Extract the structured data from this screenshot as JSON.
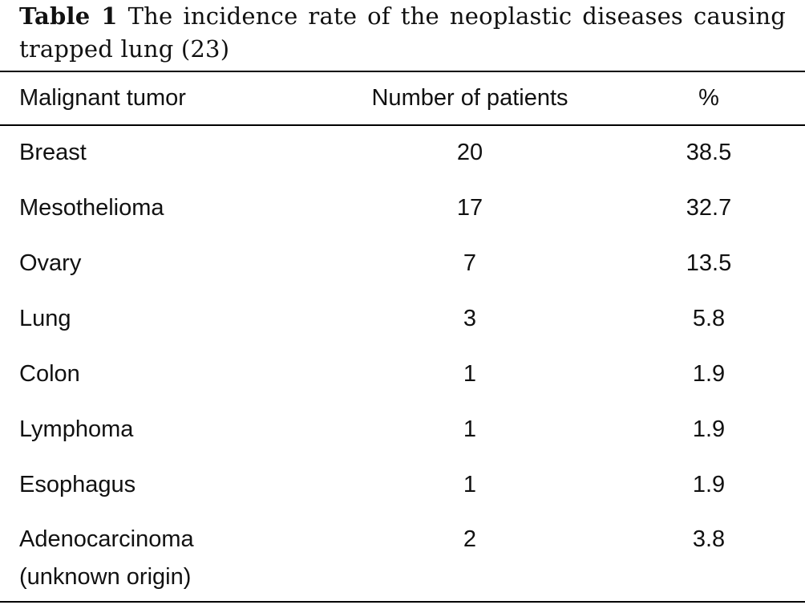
{
  "caption": {
    "label": "Table 1",
    "text": "The incidence rate of the neoplastic diseases causing trapped lung (23)"
  },
  "table": {
    "headers": [
      "Malignant tumor",
      "Number of patients",
      "%"
    ],
    "rows": [
      {
        "tumor": "Breast",
        "patients": "20",
        "percent": "38.5"
      },
      {
        "tumor": "Mesothelioma",
        "patients": "17",
        "percent": "32.7"
      },
      {
        "tumor": "Ovary",
        "patients": "7",
        "percent": "13.5"
      },
      {
        "tumor": "Lung",
        "patients": "3",
        "percent": "5.8"
      },
      {
        "tumor": "Colon",
        "patients": "1",
        "percent": "1.9"
      },
      {
        "tumor": "Lymphoma",
        "patients": "1",
        "percent": "1.9"
      },
      {
        "tumor": "Esophagus",
        "patients": "1",
        "percent": "1.9"
      },
      {
        "tumor_line1": "Adenocarcinoma",
        "tumor_line2": "(unknown origin)",
        "patients": "2",
        "percent": "3.8"
      }
    ]
  }
}
